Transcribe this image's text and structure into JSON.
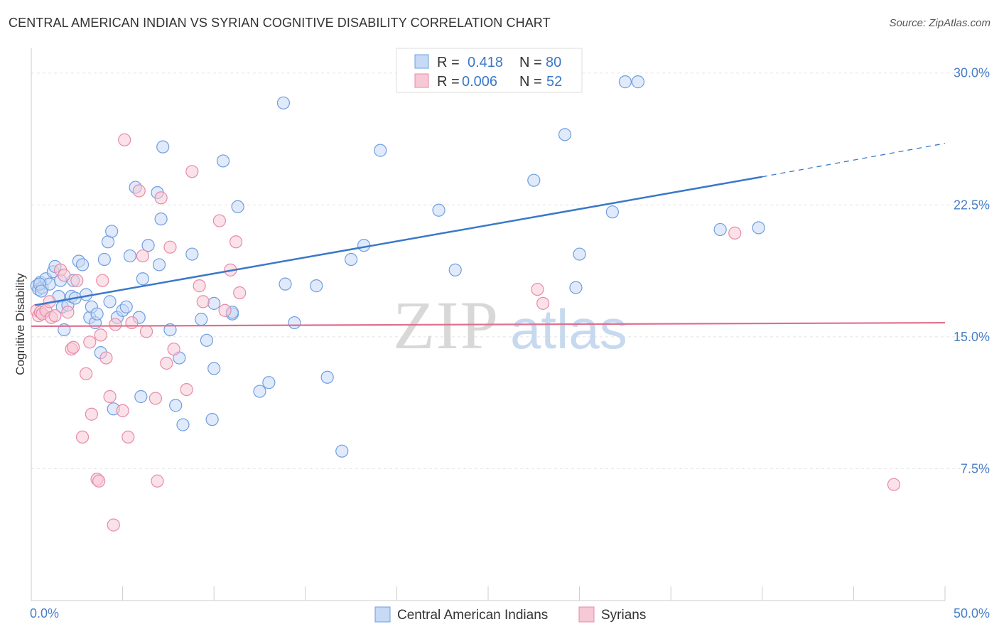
{
  "header": {
    "title": "CENTRAL AMERICAN INDIAN VS SYRIAN COGNITIVE DISABILITY CORRELATION CHART",
    "source": "Source: ZipAtlas.com"
  },
  "watermark": {
    "zip": "ZIP",
    "atlas": "atlas"
  },
  "chart_data": {
    "type": "scatter",
    "title": "CENTRAL AMERICAN INDIAN VS SYRIAN COGNITIVE DISABILITY CORRELATION CHART",
    "xlabel": "",
    "ylabel": "Cognitive Disability",
    "xlim": [
      0,
      50
    ],
    "ylim": [
      0,
      31
    ],
    "y_ticks": [
      {
        "value": 30.0,
        "label": "30.0%"
      },
      {
        "value": 22.5,
        "label": "22.5%"
      },
      {
        "value": 15.0,
        "label": "15.0%"
      },
      {
        "value": 7.5,
        "label": "7.5%"
      }
    ],
    "x_tick_labels": {
      "min": "0.0%",
      "max": "50.0%"
    },
    "x_minor_ticks": [
      5,
      10,
      15,
      20,
      25,
      30,
      35,
      40,
      45,
      50
    ],
    "legend": {
      "rows": [
        {
          "r_label": "R =",
          "r_value": "0.418",
          "n_label": "N =",
          "n_value": "80"
        },
        {
          "r_label": "R =",
          "r_value": "0.006",
          "n_label": "N =",
          "n_value": "52"
        }
      ]
    },
    "series": [
      {
        "name": "Central American Indians",
        "color": "#6f9ee0",
        "fill": "#c6d9f5",
        "trend": {
          "x0": 0.2,
          "y0": 16.8,
          "x1": 40,
          "y1": 24.1,
          "dash_to_x": 50,
          "dash_to_y": 26.0
        },
        "points": [
          [
            0.3,
            17.9
          ],
          [
            0.4,
            17.7
          ],
          [
            0.5,
            18.1
          ],
          [
            0.6,
            17.8
          ],
          [
            0.8,
            18.3
          ],
          [
            1.0,
            18.0
          ],
          [
            1.2,
            18.7
          ],
          [
            1.3,
            19.0
          ],
          [
            1.5,
            17.3
          ],
          [
            1.6,
            18.2
          ],
          [
            1.7,
            16.7
          ],
          [
            1.8,
            15.4
          ],
          [
            2.0,
            16.8
          ],
          [
            2.2,
            17.3
          ],
          [
            2.3,
            18.2
          ],
          [
            2.4,
            17.2
          ],
          [
            2.6,
            19.3
          ],
          [
            2.8,
            19.1
          ],
          [
            3.0,
            17.4
          ],
          [
            3.2,
            16.1
          ],
          [
            3.3,
            16.7
          ],
          [
            3.5,
            15.8
          ],
          [
            3.6,
            16.3
          ],
          [
            3.8,
            14.1
          ],
          [
            4.0,
            19.4
          ],
          [
            4.2,
            20.4
          ],
          [
            4.4,
            21.0
          ],
          [
            4.5,
            10.9
          ],
          [
            4.7,
            16.1
          ],
          [
            5.0,
            16.5
          ],
          [
            5.2,
            16.7
          ],
          [
            5.4,
            19.6
          ],
          [
            5.7,
            23.5
          ],
          [
            5.9,
            16.1
          ],
          [
            6.0,
            11.6
          ],
          [
            6.1,
            18.3
          ],
          [
            6.4,
            20.2
          ],
          [
            6.9,
            23.2
          ],
          [
            7.1,
            21.7
          ],
          [
            7.2,
            25.8
          ],
          [
            7.6,
            15.4
          ],
          [
            7.9,
            11.1
          ],
          [
            8.1,
            13.8
          ],
          [
            8.3,
            10.0
          ],
          [
            8.8,
            19.7
          ],
          [
            9.3,
            16.0
          ],
          [
            9.6,
            14.8
          ],
          [
            9.9,
            10.3
          ],
          [
            10.0,
            13.2
          ],
          [
            10.5,
            25.0
          ],
          [
            11.0,
            16.3
          ],
          [
            11.3,
            22.4
          ],
          [
            12.5,
            11.9
          ],
          [
            13.0,
            12.4
          ],
          [
            13.8,
            28.3
          ],
          [
            13.9,
            18.0
          ],
          [
            14.4,
            15.8
          ],
          [
            15.6,
            17.9
          ],
          [
            16.2,
            12.7
          ],
          [
            17.0,
            8.5
          ],
          [
            17.5,
            19.4
          ],
          [
            18.2,
            20.2
          ],
          [
            19.1,
            25.6
          ],
          [
            22.3,
            22.2
          ],
          [
            23.2,
            18.8
          ],
          [
            27.5,
            23.9
          ],
          [
            29.2,
            26.5
          ],
          [
            29.8,
            17.8
          ],
          [
            30.0,
            19.7
          ],
          [
            31.8,
            22.1
          ],
          [
            32.5,
            29.5
          ],
          [
            33.2,
            29.5
          ],
          [
            37.7,
            21.1
          ],
          [
            39.8,
            21.2
          ],
          [
            0.45,
            18.0
          ],
          [
            0.55,
            17.6
          ],
          [
            4.3,
            17.0
          ],
          [
            7.0,
            19.1
          ],
          [
            11.0,
            16.4
          ],
          [
            10.0,
            16.9
          ]
        ]
      },
      {
        "name": "Syrians",
        "color": "#e88aa8",
        "fill": "#f7c8d6",
        "trend": {
          "x0": 0,
          "y0": 15.6,
          "x1": 50,
          "y1": 15.8
        },
        "points": [
          [
            0.3,
            16.5
          ],
          [
            0.4,
            16.2
          ],
          [
            0.5,
            16.4
          ],
          [
            0.6,
            16.3
          ],
          [
            0.8,
            16.5
          ],
          [
            1.0,
            17.0
          ],
          [
            1.1,
            16.1
          ],
          [
            1.3,
            16.2
          ],
          [
            1.6,
            18.8
          ],
          [
            1.8,
            18.5
          ],
          [
            2.0,
            16.4
          ],
          [
            2.2,
            14.3
          ],
          [
            2.3,
            14.4
          ],
          [
            2.5,
            18.2
          ],
          [
            2.8,
            9.3
          ],
          [
            3.0,
            12.9
          ],
          [
            3.2,
            14.7
          ],
          [
            3.3,
            10.6
          ],
          [
            3.6,
            6.9
          ],
          [
            3.8,
            15.1
          ],
          [
            3.9,
            18.2
          ],
          [
            4.1,
            13.8
          ],
          [
            4.3,
            11.6
          ],
          [
            4.5,
            4.3
          ],
          [
            4.6,
            15.7
          ],
          [
            5.0,
            10.8
          ],
          [
            5.1,
            26.2
          ],
          [
            5.3,
            9.3
          ],
          [
            5.5,
            15.8
          ],
          [
            5.9,
            23.3
          ],
          [
            6.1,
            19.6
          ],
          [
            6.3,
            15.3
          ],
          [
            6.8,
            11.5
          ],
          [
            6.9,
            6.8
          ],
          [
            7.1,
            22.9
          ],
          [
            7.4,
            13.5
          ],
          [
            7.6,
            20.1
          ],
          [
            7.8,
            14.3
          ],
          [
            8.5,
            12.0
          ],
          [
            8.8,
            24.4
          ],
          [
            9.2,
            17.9
          ],
          [
            9.4,
            17.0
          ],
          [
            10.3,
            21.6
          ],
          [
            10.6,
            16.5
          ],
          [
            10.9,
            18.8
          ],
          [
            11.2,
            20.4
          ],
          [
            11.4,
            17.5
          ],
          [
            27.7,
            17.7
          ],
          [
            28.0,
            16.9
          ],
          [
            38.5,
            20.9
          ],
          [
            47.2,
            6.6
          ],
          [
            3.7,
            6.8
          ]
        ]
      }
    ]
  }
}
